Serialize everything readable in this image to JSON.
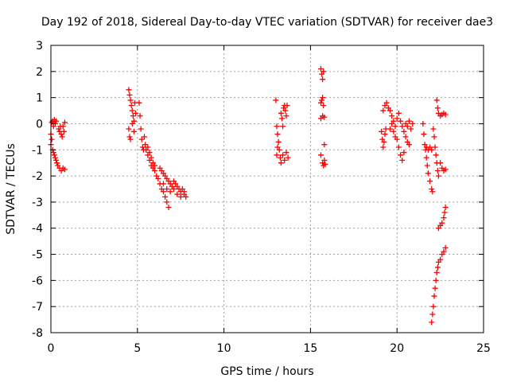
{
  "chart_data": {
    "type": "scatter",
    "title": "Day 192 of 2018, Sidereal Day-to-day VTEC variation (SDTVAR) for receiver dae3",
    "xlabel": "GPS time / hours",
    "ylabel": "SDTVAR / TECUs",
    "xlim": [
      0,
      25
    ],
    "ylim": [
      -8,
      3
    ],
    "xticks": [
      0,
      5,
      10,
      15,
      20,
      25
    ],
    "yticks": [
      -8,
      -7,
      -6,
      -5,
      -4,
      -3,
      -2,
      -1,
      0,
      1,
      2,
      3
    ],
    "xtick_labels": [
      "0",
      "5",
      "10",
      "15",
      "20",
      "25"
    ],
    "ytick_labels": [
      "-8",
      "-7",
      "-6",
      "-5",
      "-4",
      "-3",
      "-2",
      "-1",
      "0",
      "1",
      "2",
      "3"
    ],
    "grid": true,
    "marker": "plus",
    "marker_color": "#ff0000",
    "series": [
      {
        "name": "SDTVAR",
        "points": [
          [
            0.0,
            -0.4
          ],
          [
            0.05,
            0.05
          ],
          [
            0.1,
            0.1
          ],
          [
            0.15,
            -0.1
          ],
          [
            0.2,
            0.15
          ],
          [
            0.25,
            0.0
          ],
          [
            0.3,
            0.1
          ],
          [
            0.0,
            -0.8
          ],
          [
            0.05,
            -0.6
          ],
          [
            0.1,
            -1.0
          ],
          [
            0.15,
            -1.1
          ],
          [
            0.2,
            -1.2
          ],
          [
            0.25,
            -1.3
          ],
          [
            0.3,
            -1.4
          ],
          [
            0.35,
            -1.5
          ],
          [
            0.4,
            -1.6
          ],
          [
            0.45,
            -0.2
          ],
          [
            0.5,
            -0.3
          ],
          [
            0.55,
            -0.1
          ],
          [
            0.6,
            -0.4
          ],
          [
            0.65,
            -0.5
          ],
          [
            0.7,
            -0.1
          ],
          [
            0.75,
            -0.3
          ],
          [
            0.8,
            0.05
          ],
          [
            0.5,
            -1.7
          ],
          [
            0.6,
            -1.8
          ],
          [
            0.7,
            -1.7
          ],
          [
            0.8,
            -1.75
          ],
          [
            4.5,
            1.3
          ],
          [
            4.55,
            1.1
          ],
          [
            4.6,
            0.9
          ],
          [
            4.65,
            0.7
          ],
          [
            4.7,
            0.5
          ],
          [
            4.75,
            0.3
          ],
          [
            4.8,
            0.1
          ],
          [
            4.5,
            -0.2
          ],
          [
            4.55,
            -0.5
          ],
          [
            4.6,
            -0.6
          ],
          [
            4.7,
            0.0
          ],
          [
            4.8,
            -0.3
          ],
          [
            4.85,
            0.8
          ],
          [
            4.9,
            0.4
          ],
          [
            5.1,
            0.8
          ],
          [
            5.15,
            0.3
          ],
          [
            5.2,
            -0.2
          ],
          [
            5.25,
            -0.6
          ],
          [
            5.3,
            -0.9
          ],
          [
            5.35,
            -1.0
          ],
          [
            5.4,
            -0.5
          ],
          [
            5.45,
            -0.8
          ],
          [
            5.5,
            -1.0
          ],
          [
            5.6,
            -1.2
          ],
          [
            5.7,
            -1.4
          ],
          [
            5.8,
            -1.6
          ],
          [
            5.9,
            -1.7
          ],
          [
            6.0,
            -1.8
          ],
          [
            6.1,
            -2.0
          ],
          [
            6.2,
            -2.1
          ],
          [
            6.3,
            -2.3
          ],
          [
            6.4,
            -2.5
          ],
          [
            6.5,
            -2.6
          ],
          [
            6.6,
            -2.8
          ],
          [
            6.7,
            -3.0
          ],
          [
            6.8,
            -3.2
          ],
          [
            5.6,
            -0.9
          ],
          [
            5.7,
            -1.1
          ],
          [
            5.8,
            -1.3
          ],
          [
            5.9,
            -1.5
          ],
          [
            6.0,
            -1.6
          ],
          [
            6.3,
            -1.7
          ],
          [
            6.4,
            -1.8
          ],
          [
            6.5,
            -1.9
          ],
          [
            6.6,
            -2.0
          ],
          [
            6.7,
            -2.1
          ],
          [
            6.8,
            -2.2
          ],
          [
            6.9,
            -2.3
          ],
          [
            7.0,
            -2.4
          ],
          [
            7.1,
            -2.2
          ],
          [
            7.2,
            -2.3
          ],
          [
            7.3,
            -2.4
          ],
          [
            7.4,
            -2.5
          ],
          [
            7.5,
            -2.6
          ],
          [
            7.6,
            -2.5
          ],
          [
            7.7,
            -2.7
          ],
          [
            7.8,
            -2.8
          ],
          [
            6.5,
            -2.3
          ],
          [
            6.7,
            -2.5
          ],
          [
            6.9,
            -2.6
          ],
          [
            7.1,
            -2.5
          ],
          [
            7.3,
            -2.7
          ],
          [
            7.5,
            -2.8
          ],
          [
            7.7,
            -2.6
          ],
          [
            13.0,
            0.9
          ],
          [
            13.05,
            -0.1
          ],
          [
            13.1,
            -0.4
          ],
          [
            13.15,
            -0.7
          ],
          [
            13.2,
            -1.0
          ],
          [
            13.25,
            -1.3
          ],
          [
            13.3,
            -1.5
          ],
          [
            13.05,
            -1.2
          ],
          [
            13.1,
            -0.9
          ],
          [
            13.3,
            0.4
          ],
          [
            13.35,
            0.2
          ],
          [
            13.4,
            -0.1
          ],
          [
            13.45,
            0.6
          ],
          [
            13.5,
            0.7
          ],
          [
            13.55,
            0.5
          ],
          [
            13.6,
            0.3
          ],
          [
            13.65,
            0.7
          ],
          [
            13.4,
            -1.2
          ],
          [
            13.5,
            -1.4
          ],
          [
            13.6,
            -1.1
          ],
          [
            13.7,
            -1.3
          ],
          [
            15.6,
            2.1
          ],
          [
            15.65,
            1.9
          ],
          [
            15.7,
            1.7
          ],
          [
            15.75,
            2.0
          ],
          [
            15.6,
            0.8
          ],
          [
            15.65,
            0.9
          ],
          [
            15.7,
            1.0
          ],
          [
            15.75,
            0.7
          ],
          [
            15.6,
            0.2
          ],
          [
            15.7,
            0.3
          ],
          [
            15.8,
            0.25
          ],
          [
            15.8,
            -0.8
          ],
          [
            15.6,
            -1.2
          ],
          [
            15.7,
            -1.5
          ],
          [
            15.75,
            -1.6
          ],
          [
            15.8,
            -1.4
          ],
          [
            15.85,
            -1.55
          ],
          [
            19.1,
            -0.3
          ],
          [
            19.15,
            -0.6
          ],
          [
            19.2,
            -0.9
          ],
          [
            19.25,
            -0.7
          ],
          [
            19.3,
            -0.4
          ],
          [
            19.35,
            -0.2
          ],
          [
            19.2,
            0.5
          ],
          [
            19.3,
            0.7
          ],
          [
            19.4,
            0.8
          ],
          [
            19.5,
            0.6
          ],
          [
            19.6,
            0.5
          ],
          [
            19.7,
            0.3
          ],
          [
            19.8,
            0.1
          ],
          [
            19.9,
            -0.1
          ],
          [
            20.0,
            0.2
          ],
          [
            19.6,
            -0.2
          ],
          [
            19.7,
            0.0
          ],
          [
            19.8,
            -0.3
          ],
          [
            19.9,
            -0.5
          ],
          [
            20.0,
            -0.6
          ],
          [
            20.1,
            -0.9
          ],
          [
            20.2,
            -1.2
          ],
          [
            20.3,
            -1.4
          ],
          [
            20.4,
            -1.1
          ],
          [
            20.1,
            0.4
          ],
          [
            20.2,
            0.1
          ],
          [
            20.3,
            -0.1
          ],
          [
            20.4,
            -0.3
          ],
          [
            20.5,
            -0.5
          ],
          [
            20.6,
            -0.7
          ],
          [
            20.7,
            -0.8
          ],
          [
            20.5,
            0.0
          ],
          [
            20.6,
            -0.1
          ],
          [
            20.7,
            0.1
          ],
          [
            20.8,
            -0.2
          ],
          [
            20.9,
            0.0
          ],
          [
            21.5,
            0.0
          ],
          [
            21.55,
            -0.4
          ],
          [
            21.6,
            -0.8
          ],
          [
            21.65,
            -1.0
          ],
          [
            21.7,
            -1.3
          ],
          [
            21.75,
            -1.6
          ],
          [
            21.8,
            -1.9
          ],
          [
            21.9,
            -2.2
          ],
          [
            22.0,
            -2.5
          ],
          [
            22.05,
            -2.6
          ],
          [
            21.7,
            -0.9
          ],
          [
            21.8,
            -1.0
          ],
          [
            21.9,
            -0.9
          ],
          [
            22.0,
            -1.0
          ],
          [
            22.1,
            -0.2
          ],
          [
            22.15,
            -0.5
          ],
          [
            22.2,
            -0.9
          ],
          [
            22.25,
            -1.2
          ],
          [
            22.3,
            -1.5
          ],
          [
            22.35,
            -1.8
          ],
          [
            22.4,
            -2.0
          ],
          [
            22.3,
            0.9
          ],
          [
            22.35,
            0.6
          ],
          [
            22.4,
            0.4
          ],
          [
            22.5,
            0.3
          ],
          [
            22.6,
            0.35
          ],
          [
            22.7,
            0.4
          ],
          [
            22.8,
            0.35
          ],
          [
            22.5,
            -1.5
          ],
          [
            22.6,
            -1.7
          ],
          [
            22.7,
            -1.8
          ],
          [
            22.8,
            -1.75
          ],
          [
            22.4,
            -4.0
          ],
          [
            22.5,
            -3.9
          ],
          [
            22.6,
            -3.8
          ],
          [
            22.7,
            -3.6
          ],
          [
            22.75,
            -3.4
          ],
          [
            22.8,
            -3.2
          ],
          [
            22.0,
            -7.6
          ],
          [
            22.05,
            -7.3
          ],
          [
            22.1,
            -7.0
          ],
          [
            22.15,
            -6.6
          ],
          [
            22.2,
            -6.3
          ],
          [
            22.25,
            -6.0
          ],
          [
            22.3,
            -5.7
          ],
          [
            22.35,
            -5.5
          ],
          [
            22.4,
            -5.3
          ],
          [
            22.5,
            -5.2
          ],
          [
            22.6,
            -5.0
          ],
          [
            22.7,
            -4.9
          ],
          [
            22.8,
            -4.75
          ]
        ]
      }
    ]
  }
}
